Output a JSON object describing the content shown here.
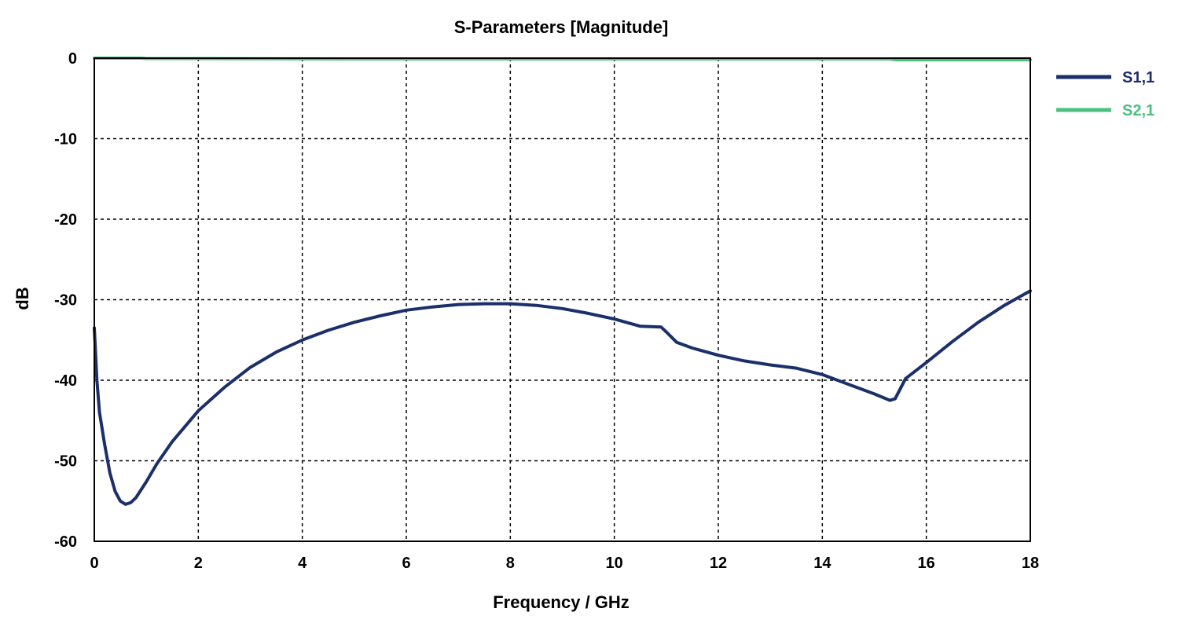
{
  "chart_data": {
    "type": "line",
    "title": "S-Parameters [Magnitude]",
    "xlabel": "Frequency / GHz",
    "ylabel": "dB",
    "xlim": [
      0,
      18
    ],
    "ylim": [
      -60,
      0
    ],
    "xticks": [
      0,
      2,
      4,
      6,
      8,
      10,
      12,
      14,
      16,
      18
    ],
    "yticks": [
      0,
      -10,
      -20,
      -30,
      -40,
      -50,
      -60
    ],
    "grid": true,
    "grid_style": "dashed",
    "legend_position": "right",
    "series": [
      {
        "name": "S1,1",
        "color": "#1b2f6b",
        "points": [
          [
            0.0,
            -33.5
          ],
          [
            0.05,
            -40.0
          ],
          [
            0.1,
            -44.0
          ],
          [
            0.2,
            -48.0
          ],
          [
            0.3,
            -51.5
          ],
          [
            0.4,
            -53.8
          ],
          [
            0.5,
            -55.0
          ],
          [
            0.6,
            -55.4
          ],
          [
            0.7,
            -55.2
          ],
          [
            0.8,
            -54.6
          ],
          [
            1.0,
            -52.6
          ],
          [
            1.2,
            -50.4
          ],
          [
            1.5,
            -47.6
          ],
          [
            2.0,
            -43.8
          ],
          [
            2.5,
            -40.9
          ],
          [
            3.0,
            -38.4
          ],
          [
            3.5,
            -36.5
          ],
          [
            4.0,
            -35.0
          ],
          [
            4.5,
            -33.8
          ],
          [
            5.0,
            -32.8
          ],
          [
            5.5,
            -32.0
          ],
          [
            6.0,
            -31.3
          ],
          [
            6.5,
            -30.9
          ],
          [
            7.0,
            -30.6
          ],
          [
            7.5,
            -30.5
          ],
          [
            8.0,
            -30.5
          ],
          [
            8.5,
            -30.7
          ],
          [
            9.0,
            -31.1
          ],
          [
            9.5,
            -31.7
          ],
          [
            10.0,
            -32.4
          ],
          [
            10.5,
            -33.3
          ],
          [
            10.9,
            -33.4
          ],
          [
            11.0,
            -34.0
          ],
          [
            11.2,
            -35.3
          ],
          [
            11.5,
            -36.0
          ],
          [
            12.0,
            -36.9
          ],
          [
            12.5,
            -37.6
          ],
          [
            13.0,
            -38.1
          ],
          [
            13.5,
            -38.5
          ],
          [
            14.0,
            -39.3
          ],
          [
            14.5,
            -40.5
          ],
          [
            15.0,
            -41.7
          ],
          [
            15.3,
            -42.5
          ],
          [
            15.4,
            -42.3
          ],
          [
            15.6,
            -39.8
          ],
          [
            16.0,
            -37.8
          ],
          [
            16.5,
            -35.2
          ],
          [
            17.0,
            -32.8
          ],
          [
            17.5,
            -30.7
          ],
          [
            18.0,
            -28.9
          ]
        ]
      },
      {
        "name": "S2,1",
        "color": "#4cc07f",
        "points": [
          [
            0.0,
            0.0
          ],
          [
            0.9,
            0.0
          ],
          [
            1.0,
            -0.05
          ],
          [
            5.0,
            -0.1
          ],
          [
            10.0,
            -0.1
          ],
          [
            15.3,
            -0.1
          ],
          [
            15.4,
            -0.2
          ],
          [
            18.0,
            -0.2
          ]
        ]
      }
    ]
  }
}
